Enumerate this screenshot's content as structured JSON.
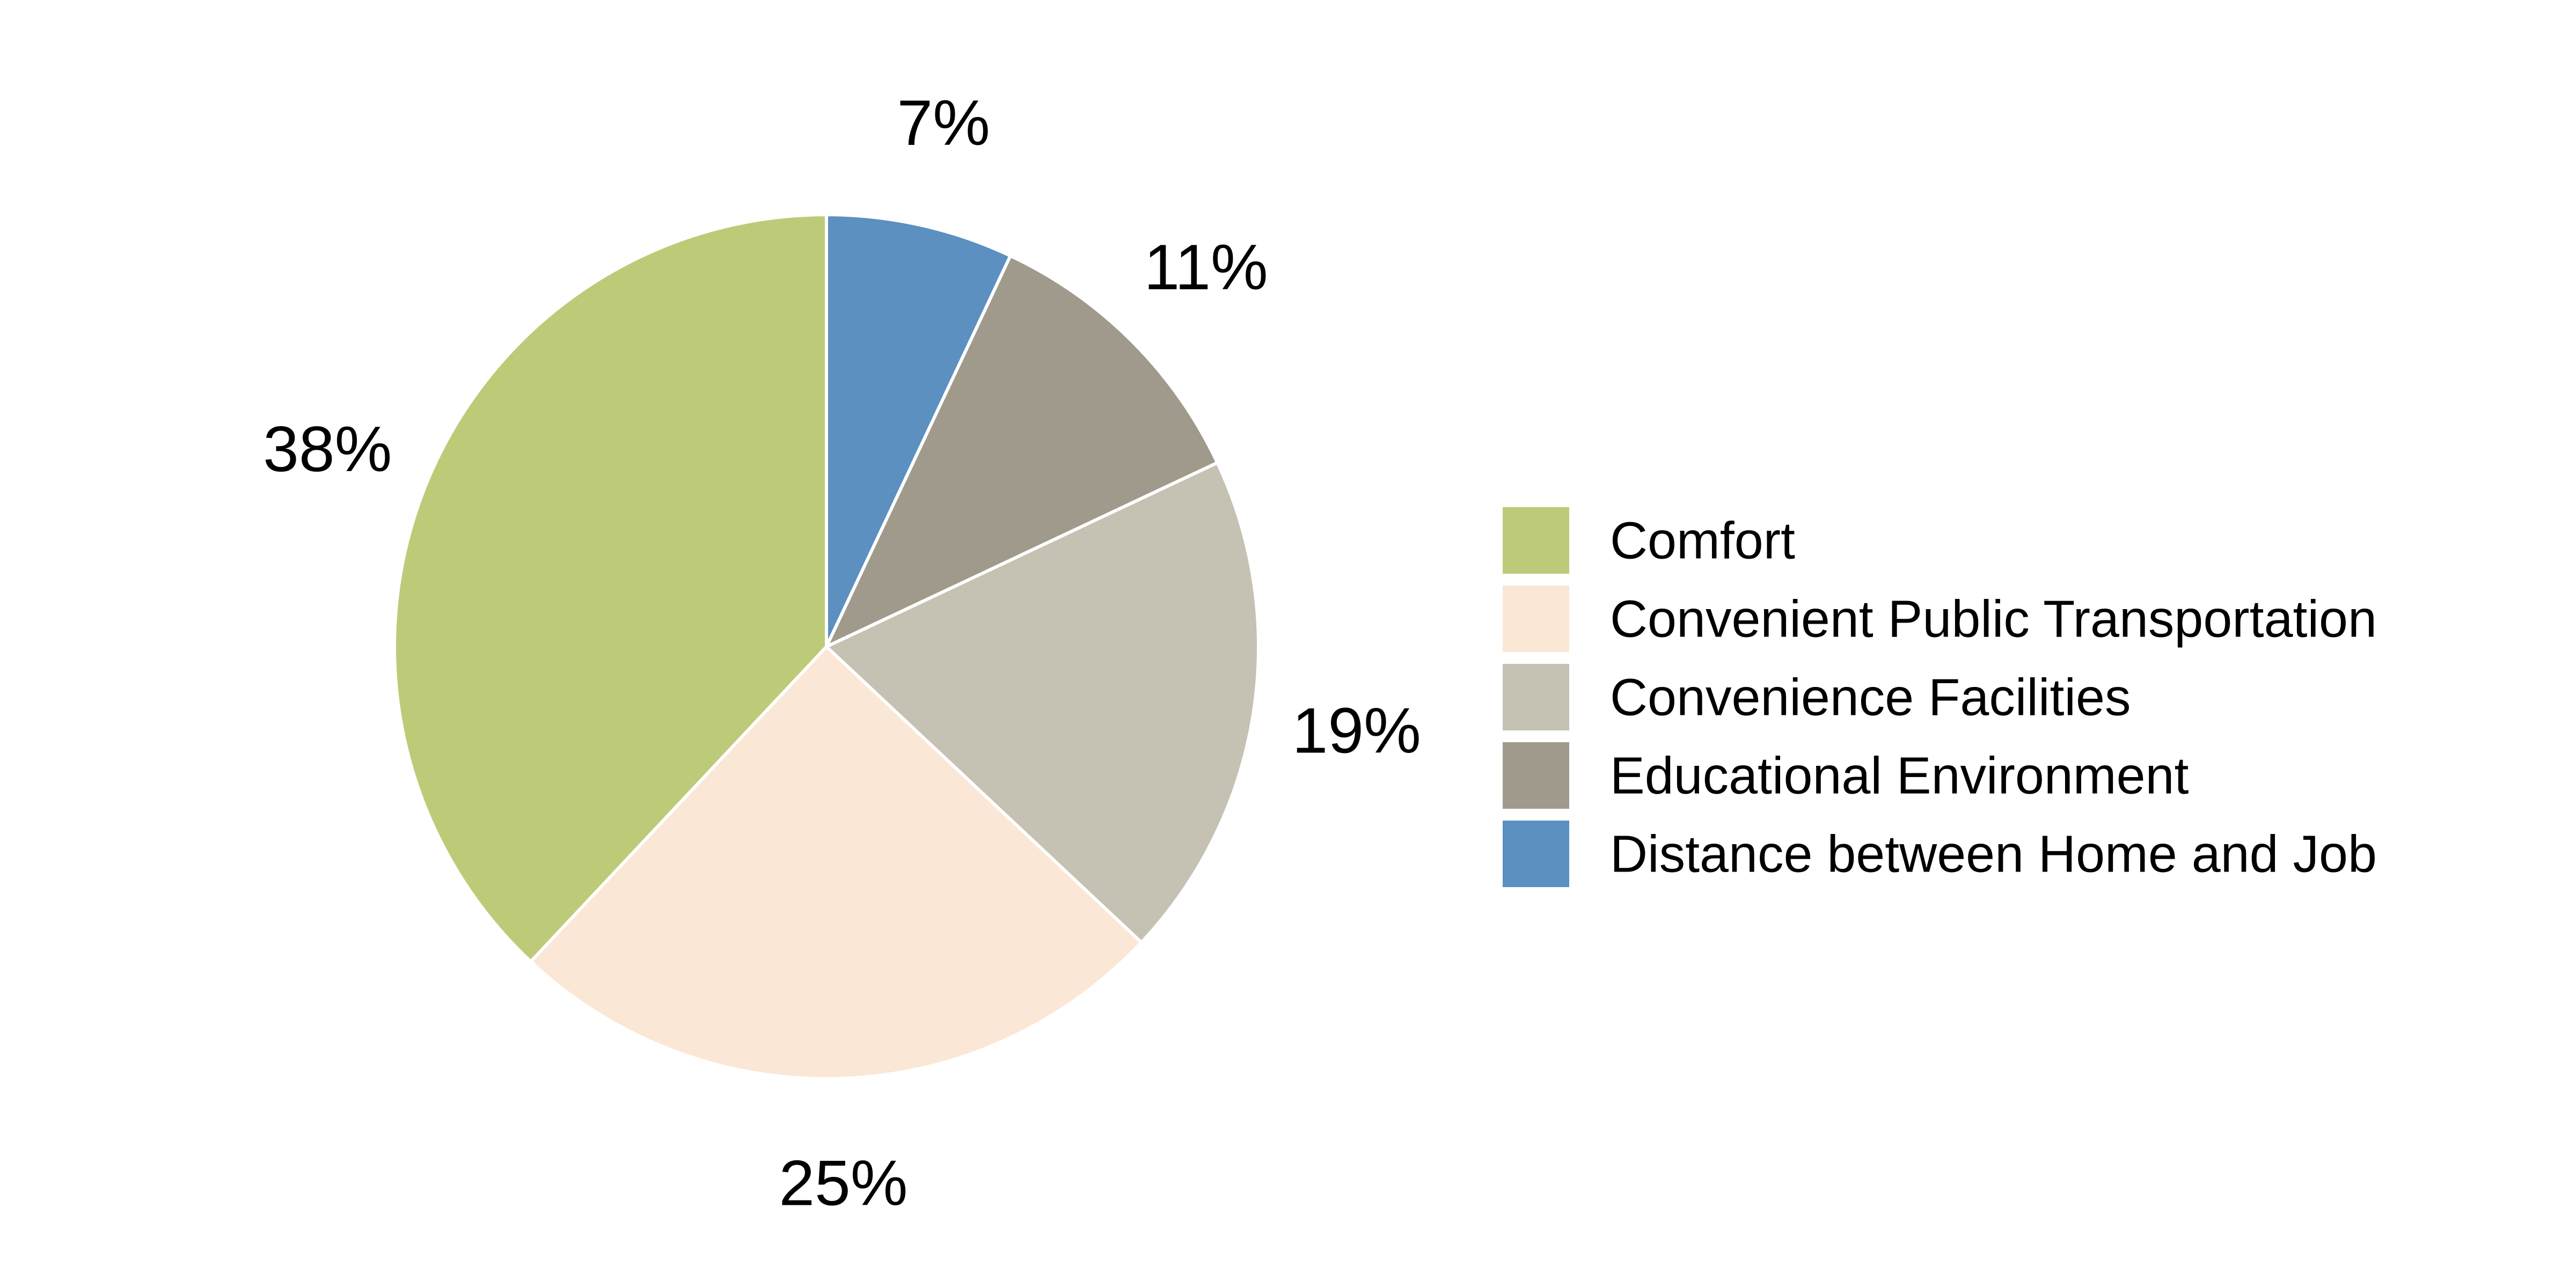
{
  "chart_data": {
    "type": "pie",
    "title": "",
    "slices": [
      {
        "label": "Distance between Home and Job",
        "value": 7,
        "display": "7%",
        "color": "#5b90c0"
      },
      {
        "label": "Educational Environment",
        "value": 11,
        "display": "11%",
        "color": "#9f9a8b"
      },
      {
        "label": "Convenience Facilities",
        "value": 19,
        "display": "19%",
        "color": "#c5c1b3"
      },
      {
        "label": "Convenient Public Transportation",
        "value": 25,
        "display": "25%",
        "color": "#fbe7d5"
      },
      {
        "label": "Comfort",
        "value": 38,
        "display": "38%",
        "color": "#bdcb78"
      }
    ],
    "start_angle": "12 o'clock",
    "direction": "clockwise",
    "legend": {
      "placement": "right",
      "entries": [
        {
          "label": "Comfort",
          "color": "#bdcb78"
        },
        {
          "label": "Convenient Public Transportation",
          "color": "#fbe7d5"
        },
        {
          "label": "Convenience Facilities",
          "color": "#c5c1b3"
        },
        {
          "label": "Educational Environment",
          "color": "#9f9a8b"
        },
        {
          "label": "Distance between Home and Job",
          "color": "#5b90c0"
        }
      ]
    }
  }
}
